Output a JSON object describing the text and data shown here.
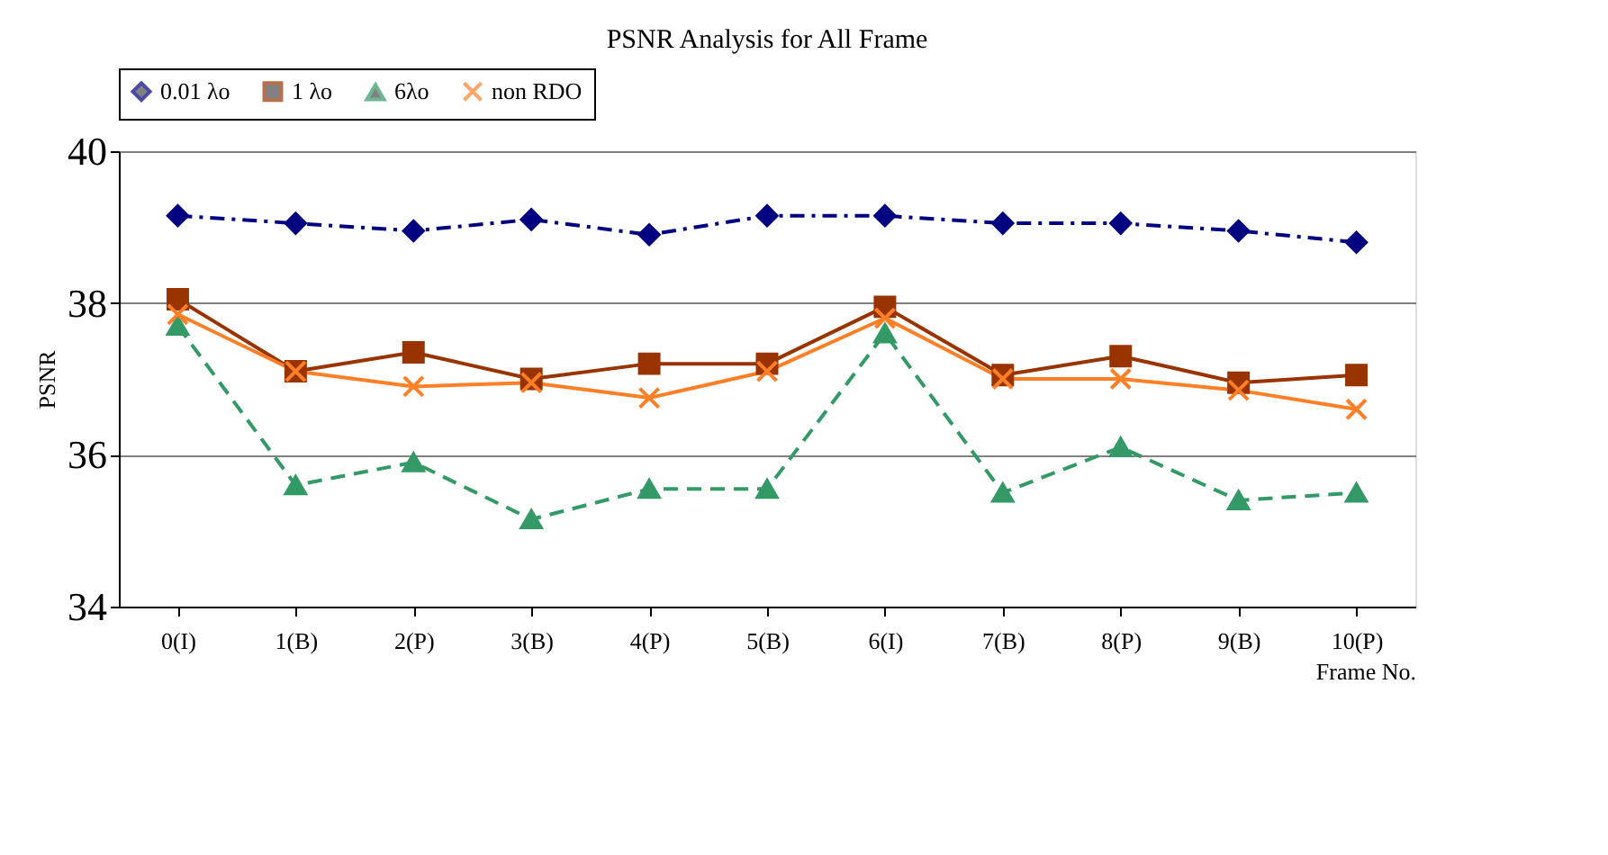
{
  "chart_data": {
    "type": "line",
    "title": "PSNR Analysis for All Frame",
    "xlabel": "Frame No.",
    "ylabel": "PSNR",
    "categories": [
      "0(I)",
      "1(B)",
      "2(P)",
      "3(B)",
      "4(P)",
      "5(B)",
      "6(I)",
      "7(B)",
      "8(P)",
      "9(B)",
      "10(P)"
    ],
    "ylim": [
      34,
      40
    ],
    "yticks": [
      34,
      36,
      38,
      40
    ],
    "grid": "y",
    "legend": "top",
    "series": [
      {
        "name": "0.01 λo",
        "color": "#000080",
        "marker": "diamond",
        "line_style": "dashdot",
        "values": [
          39.15,
          39.05,
          38.95,
          39.1,
          38.9,
          39.15,
          39.15,
          39.05,
          39.05,
          38.95,
          38.8
        ]
      },
      {
        "name": "1 λo",
        "color": "#993300",
        "marker": "square",
        "line_style": "solid",
        "values": [
          38.05,
          37.1,
          37.35,
          37.0,
          37.2,
          37.2,
          37.95,
          37.05,
          37.3,
          36.95,
          37.05
        ]
      },
      {
        "name": "6λo",
        "color": "#339966",
        "marker": "triangle",
        "line_style": "dashed",
        "values": [
          37.7,
          35.6,
          35.9,
          35.15,
          35.55,
          35.55,
          37.6,
          35.5,
          36.1,
          35.4,
          35.5
        ]
      },
      {
        "name": "non RDO",
        "color": "#ff7f27",
        "marker": "cross",
        "line_style": "solid",
        "values": [
          37.85,
          37.1,
          36.9,
          36.95,
          36.75,
          37.1,
          37.8,
          37.0,
          37.0,
          36.85,
          36.6
        ]
      }
    ]
  }
}
